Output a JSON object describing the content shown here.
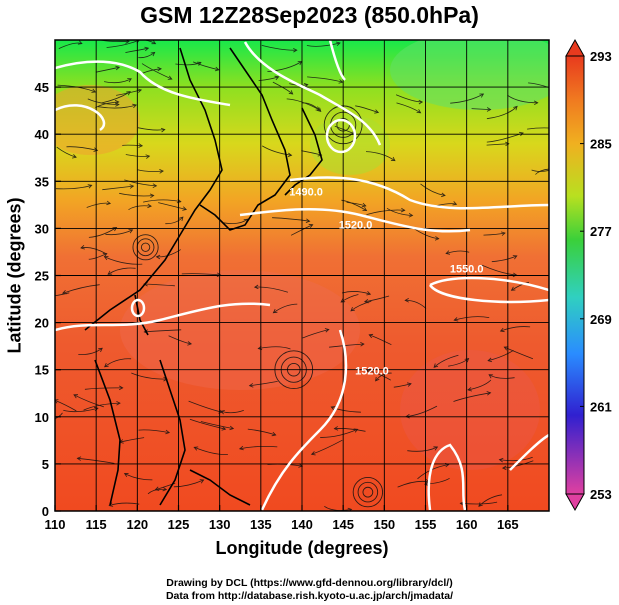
{
  "title": "GSM 12Z28Sep2023 (850.0hPa)",
  "axes": {
    "xlabel": "Longitude (degrees)",
    "ylabel": "Latitude  (degrees)",
    "x_ticks": [
      "110",
      "115",
      "120",
      "125",
      "130",
      "135",
      "140",
      "145",
      "150",
      "155",
      "160",
      "165"
    ],
    "y_ticks": [
      "0",
      "5",
      "10",
      "15",
      "20",
      "25",
      "30",
      "35",
      "40",
      "45"
    ],
    "xlim": [
      110,
      170
    ],
    "ylim": [
      0,
      50
    ]
  },
  "colorbar": {
    "ticks": [
      "293",
      "285",
      "277",
      "269",
      "261",
      "253"
    ],
    "range": [
      253,
      293
    ],
    "colors": [
      "#e040a0",
      "#3020d0",
      "#2a8cff",
      "#30d0c0",
      "#3ad03a",
      "#c8e020",
      "#f0a020",
      "#e83a1e"
    ]
  },
  "contours": [
    {
      "label": "1490.0",
      "lon": 140.5,
      "lat": 33.5
    },
    {
      "label": "1520.0",
      "lon": 146.5,
      "lat": 30.0
    },
    {
      "label": "1550.0",
      "lon": 160.0,
      "lat": 25.3
    },
    {
      "label": "1520.0",
      "lon": 148.5,
      "lat": 14.5
    }
  ],
  "credits": {
    "line1": "Drawing by DCL (https://www.gfd-dennou.org/library/dcl/)",
    "line2": "Data from http://database.rish.kyoto-u.ac.jp/arch/jmadata/"
  }
}
